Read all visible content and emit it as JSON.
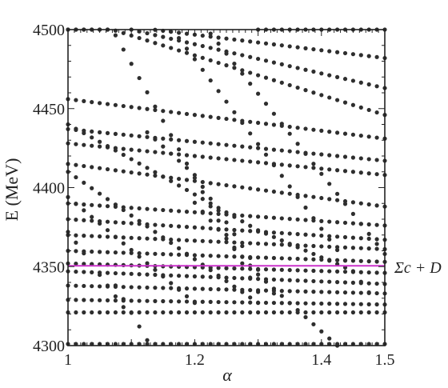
{
  "chart_data": {
    "type": "scatter",
    "xlabel": "α",
    "ylabel": "E (MeV)",
    "xlim": [
      1.0,
      1.5
    ],
    "ylim": [
      4300,
      4500
    ],
    "x_ticks": [
      1,
      1.2,
      1.4,
      1.5
    ],
    "x_tick_labels": [
      "1",
      "1.2",
      "1.4",
      "1.5"
    ],
    "y_ticks": [
      4300,
      4350,
      4400,
      4450,
      4500
    ],
    "y_tick_labels": [
      "4300",
      "4350",
      "4400",
      "4450",
      "4500"
    ],
    "threshold": {
      "label": "Σc + D",
      "value": 4350.5,
      "color": "#cc33cc"
    },
    "marker_color": "#2e2e2e",
    "grid": false,
    "x_samples": [
      1.0,
      1.0125,
      1.025,
      1.0375,
      1.05,
      1.0625,
      1.075,
      1.0875,
      1.1,
      1.1125,
      1.125,
      1.1375,
      1.15,
      1.1625,
      1.175,
      1.1875,
      1.2,
      1.2125,
      1.225,
      1.2375,
      1.25,
      1.2625,
      1.275,
      1.2875,
      1.3,
      1.3125,
      1.325,
      1.3375,
      1.35,
      1.3625,
      1.375,
      1.3875,
      1.4,
      1.4125,
      1.425,
      1.4375,
      1.45,
      1.4625,
      1.475,
      1.4875,
      1.5
    ],
    "series": [
      {
        "x_range": [
          1.0,
          1.5
        ],
        "y_at": [
          [
            1.0,
            4301
          ],
          [
            1.5,
            4301
          ]
        ]
      },
      {
        "x_range": [
          1.0,
          1.5
        ],
        "y_at": [
          [
            1.0,
            4321
          ],
          [
            1.5,
            4321
          ]
        ]
      },
      {
        "x_range": [
          1.0,
          1.5
        ],
        "y_at": [
          [
            1.0,
            4329
          ],
          [
            1.5,
            4326
          ]
        ]
      },
      {
        "x_range": [
          1.0,
          1.5
        ],
        "y_at": [
          [
            1.0,
            4338
          ],
          [
            1.5,
            4333
          ]
        ]
      },
      {
        "x_range": [
          1.0,
          1.5
        ],
        "y_at": [
          [
            1.0,
            4347
          ],
          [
            1.5,
            4339
          ]
        ]
      },
      {
        "x_range": [
          1.0,
          1.5
        ],
        "y_at": [
          [
            1.0,
            4352
          ],
          [
            1.5,
            4346
          ]
        ]
      },
      {
        "x_range": [
          1.0,
          1.5
        ],
        "y_at": [
          [
            1.0,
            4360
          ],
          [
            1.5,
            4353
          ]
        ]
      },
      {
        "x_range": [
          1.0,
          1.5
        ],
        "y_at": [
          [
            1.0,
            4370
          ],
          [
            1.5,
            4361
          ]
        ]
      },
      {
        "x_range": [
          1.0,
          1.5
        ],
        "y_at": [
          [
            1.0,
            4380
          ],
          [
            1.5,
            4367
          ]
        ]
      },
      {
        "x_range": [
          1.0,
          1.5
        ],
        "y_at": [
          [
            1.0,
            4390
          ],
          [
            1.5,
            4376
          ]
        ]
      },
      {
        "x_range": [
          1.0,
          1.5
        ],
        "y_at": [
          [
            1.0,
            4415
          ],
          [
            1.5,
            4388
          ]
        ]
      },
      {
        "x_range": [
          1.0,
          1.5
        ],
        "y_at": [
          [
            1.0,
            4428
          ],
          [
            1.5,
            4408
          ]
        ]
      },
      {
        "x_range": [
          1.0,
          1.5
        ],
        "y_at": [
          [
            1.0,
            4437
          ],
          [
            1.5,
            4417
          ]
        ]
      },
      {
        "x_range": [
          1.0,
          1.5
        ],
        "y_at": [
          [
            1.0,
            4456
          ],
          [
            1.5,
            4431
          ]
        ]
      },
      {
        "x_range": [
          1.0,
          1.5
        ],
        "y_at": [
          [
            1.0,
            4500
          ],
          [
            1.07,
            4500
          ],
          [
            1.5,
            4446
          ]
        ]
      },
      {
        "x_range": [
          1.1,
          1.5
        ],
        "y_at": [
          [
            1.1,
            4500
          ],
          [
            1.5,
            4463
          ]
        ]
      },
      {
        "x_range": [
          1.135,
          1.5
        ],
        "y_at": [
          [
            1.135,
            4500
          ],
          [
            1.5,
            4482
          ]
        ]
      },
      {
        "x_range": [
          1.0,
          1.065
        ],
        "y_at": [
          [
            1.0,
            4500
          ],
          [
            1.065,
            4500
          ]
        ]
      },
      {
        "x_range": [
          1.29,
          1.5
        ],
        "y_at": [
          [
            1.29,
            4500
          ],
          [
            1.5,
            4500
          ]
        ]
      },
      {
        "x_range": [
          1.0,
          1.44
        ],
        "y_at": [
          [
            1.0,
            4440
          ],
          [
            1.15,
            4407
          ],
          [
            1.3,
            4373
          ],
          [
            1.44,
            4349
          ]
        ]
      },
      {
        "x_range": [
          1.0,
          1.3
        ],
        "y_at": [
          [
            1.0,
            4410
          ],
          [
            1.3,
            4327
          ]
        ]
      },
      {
        "x_range": [
          1.0,
          1.2
        ],
        "y_at": [
          [
            1.0,
            4394
          ],
          [
            1.2,
            4327
          ]
        ]
      },
      {
        "x_range": [
          1.0,
          1.09
        ],
        "y_at": [
          [
            1.0,
            4372
          ],
          [
            1.09,
            4323
          ]
        ]
      },
      {
        "x_range": [
          1.065,
          1.13
        ],
        "y_at": [
          [
            1.065,
            4345
          ],
          [
            1.13,
            4300
          ]
        ]
      },
      {
        "x_range": [
          1.07,
          1.3
        ],
        "y_at": [
          [
            1.07,
            4500
          ],
          [
            1.3,
            4334
          ]
        ]
      },
      {
        "x_range": [
          1.165,
          1.48
        ],
        "y_at": [
          [
            1.165,
            4500
          ],
          [
            1.48,
            4331
          ]
        ]
      },
      {
        "x_range": [
          1.22,
          1.5
        ],
        "y_at": [
          [
            1.22,
            4500
          ],
          [
            1.5,
            4358
          ]
        ]
      },
      {
        "x_range": [
          1.19,
          1.425
        ],
        "y_at": [
          [
            1.19,
            4395
          ],
          [
            1.3,
            4345
          ],
          [
            1.425,
            4300
          ]
        ]
      },
      {
        "x_range": [
          1.125,
          1.33
        ],
        "y_at": [
          [
            1.125,
            4435
          ],
          [
            1.2,
            4408
          ],
          [
            1.33,
            4330
          ]
        ]
      }
    ]
  }
}
